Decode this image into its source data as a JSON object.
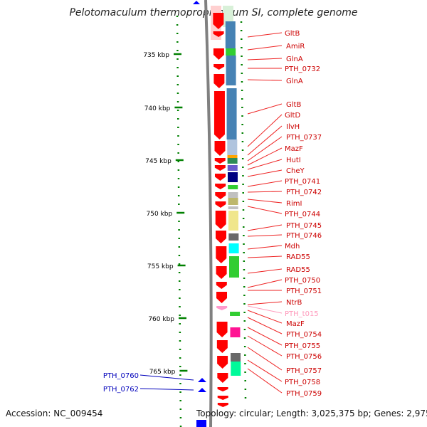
{
  "title": "Pelotomaculum thermopropionicum SI, complete genome",
  "footer": {
    "accession": "Accession: NC_009454",
    "topology": "Topology: circular; Length: 3,025,375 bp; Genes: 2,975"
  },
  "colors": {
    "forward_gene": "#ff0000",
    "label_red": "#cc0000",
    "label_pink": "#ff99bb",
    "label_blue": "#0000bb",
    "backbone": "#808080",
    "ticks": "#008000"
  },
  "chart_data": {
    "type": "genome-map",
    "ticks_kbp": [
      "735 kbp",
      "740 kbp",
      "745 kbp",
      "750 kbp",
      "755 kbp",
      "760 kbp",
      "765 kbp"
    ],
    "right_labels": [
      "GltB",
      "AmiR",
      "GlnA",
      "PTH_0732",
      "GlnA",
      "GltB",
      "GltD",
      "IlvH",
      "PTH_0737",
      "MazF",
      "HutI",
      "CheY",
      "PTH_0741",
      "PTH_0742",
      "RimI",
      "PTH_0744",
      "PTH_0745",
      "PTH_0746",
      "Mdh",
      "RAD55",
      "RAD55",
      "PTH_0750",
      "PTH_0751",
      "NtrB",
      "PTH_t015",
      "MazF",
      "PTH_0754",
      "PTH_0755",
      "PTH_0756",
      "PTH_0757",
      "PTH_0758",
      "PTH_0759"
    ],
    "left_labels": [
      "PTH_0760",
      "PTH_0762"
    ]
  }
}
